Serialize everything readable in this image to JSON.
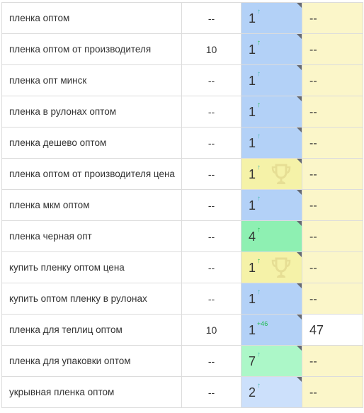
{
  "colors": {
    "blue": "#b3d1f7",
    "light_blue": "#cce0fb",
    "yellow": "#f5f2a8",
    "green": "#8ef0b2",
    "light_green": "#acf7c8",
    "pale_yellow": "#fbf6c9",
    "white": "#ffffff",
    "arrow_green": "#22bb55",
    "arrow_teal": "#44b8b0",
    "trophy": "#e6de94"
  },
  "rows": [
    {
      "phrase": "пленка оптом",
      "freq": "--",
      "pos": "1",
      "mark": "↑",
      "mark_color": "arrow_teal",
      "pos_bg": "blue",
      "trophy": false,
      "comp": "--",
      "comp_bg": "pale_yellow"
    },
    {
      "phrase": "пленка оптом от производителя",
      "freq": "10",
      "pos": "1",
      "mark": "↑",
      "mark_color": "arrow_green",
      "pos_bg": "blue",
      "trophy": false,
      "comp": "--",
      "comp_bg": "pale_yellow"
    },
    {
      "phrase": "пленка опт минск",
      "freq": "--",
      "pos": "1",
      "mark": "↑",
      "mark_color": "arrow_teal",
      "pos_bg": "blue",
      "trophy": false,
      "comp": "--",
      "comp_bg": "pale_yellow"
    },
    {
      "phrase": "пленка в рулонах оптом",
      "freq": "--",
      "pos": "1",
      "mark": "↑",
      "mark_color": "arrow_green",
      "pos_bg": "blue",
      "trophy": false,
      "comp": "--",
      "comp_bg": "pale_yellow"
    },
    {
      "phrase": "пленка дешево оптом",
      "freq": "--",
      "pos": "1",
      "mark": "↑",
      "mark_color": "arrow_teal",
      "pos_bg": "blue",
      "trophy": false,
      "comp": "--",
      "comp_bg": "pale_yellow"
    },
    {
      "phrase": "пленка оптом от производителя цена",
      "freq": "--",
      "pos": "1",
      "mark": "↑",
      "mark_color": "arrow_teal",
      "pos_bg": "yellow",
      "trophy": true,
      "comp": "--",
      "comp_bg": "pale_yellow"
    },
    {
      "phrase": "пленка мкм оптом",
      "freq": "--",
      "pos": "1",
      "mark": "↑",
      "mark_color": "arrow_teal",
      "pos_bg": "blue",
      "trophy": false,
      "comp": "--",
      "comp_bg": "pale_yellow"
    },
    {
      "phrase": "пленка черная опт",
      "freq": "--",
      "pos": "4",
      "mark": "↑",
      "mark_color": "arrow_green",
      "pos_bg": "green",
      "trophy": false,
      "comp": "--",
      "comp_bg": "pale_yellow"
    },
    {
      "phrase": "купить пленку оптом цена",
      "freq": "--",
      "pos": "1",
      "mark": "↑",
      "mark_color": "arrow_green",
      "pos_bg": "yellow",
      "trophy": true,
      "comp": "--",
      "comp_bg": "pale_yellow"
    },
    {
      "phrase": "купить оптом пленку в рулонах",
      "freq": "--",
      "pos": "1",
      "mark": "↑",
      "mark_color": "arrow_teal",
      "pos_bg": "blue",
      "trophy": false,
      "comp": "--",
      "comp_bg": "pale_yellow"
    },
    {
      "phrase": "пленка для теплиц оптом",
      "freq": "10",
      "pos": "1",
      "mark": "+46",
      "mark_color": "arrow_green",
      "pos_bg": "blue",
      "trophy": false,
      "comp": "47",
      "comp_bg": "white"
    },
    {
      "phrase": "пленка для упаковки оптом",
      "freq": "--",
      "pos": "7",
      "mark": "↑",
      "mark_color": "arrow_teal",
      "pos_bg": "light_green",
      "trophy": false,
      "comp": "--",
      "comp_bg": "pale_yellow"
    },
    {
      "phrase": "укрывная пленка оптом",
      "freq": "--",
      "pos": "2",
      "mark": "↑",
      "mark_color": "arrow_teal",
      "pos_bg": "light_blue",
      "trophy": false,
      "comp": "--",
      "comp_bg": "pale_yellow"
    }
  ]
}
